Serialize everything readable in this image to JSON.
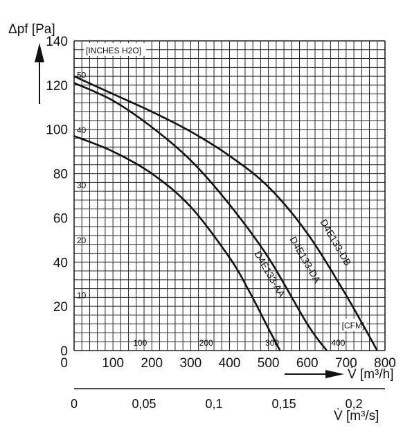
{
  "chart_data": {
    "type": "line",
    "y_axis": {
      "label": "Δpf [Pa]",
      "ylim": [
        0,
        140
      ],
      "ticks": [
        "0",
        "20",
        "40",
        "60",
        "80",
        "100",
        "120",
        "140"
      ]
    },
    "x_axis_primary": {
      "label": "V̇ [m³/h]",
      "xlim": [
        0,
        800
      ],
      "ticks": [
        "100",
        "200",
        "300",
        "400",
        "500",
        "600",
        "700",
        "800"
      ]
    },
    "x_axis_secondary": {
      "label": "V̇ [m³/s]",
      "ticks": [
        "0",
        "0,05",
        "0,1",
        "0,15",
        "0,2"
      ]
    },
    "inner_y_axis": {
      "label": "INCHES H2O",
      "ticks": [
        "10",
        "20",
        "30",
        "40",
        "50"
      ]
    },
    "inner_x_axis": {
      "label": "CFM",
      "ticks": [
        "100",
        "200",
        "300",
        "400"
      ]
    },
    "series": [
      {
        "name": "D4E133-AA",
        "x": [
          0,
          100,
          200,
          300,
          400,
          450,
          500,
          530
        ],
        "y": [
          97,
          90,
          80,
          65,
          42,
          27,
          10,
          0
        ]
      },
      {
        "name": "D4E133-DA",
        "x": [
          0,
          100,
          200,
          300,
          400,
          500,
          600,
          650
        ],
        "y": [
          121,
          113,
          101,
          86,
          66,
          42,
          12,
          0
        ]
      },
      {
        "name": "D4E133-DB",
        "x": [
          0,
          100,
          200,
          300,
          400,
          500,
          600,
          700,
          780
        ],
        "y": [
          124,
          116,
          108,
          99,
          88,
          74,
          53,
          25,
          0
        ]
      }
    ]
  }
}
